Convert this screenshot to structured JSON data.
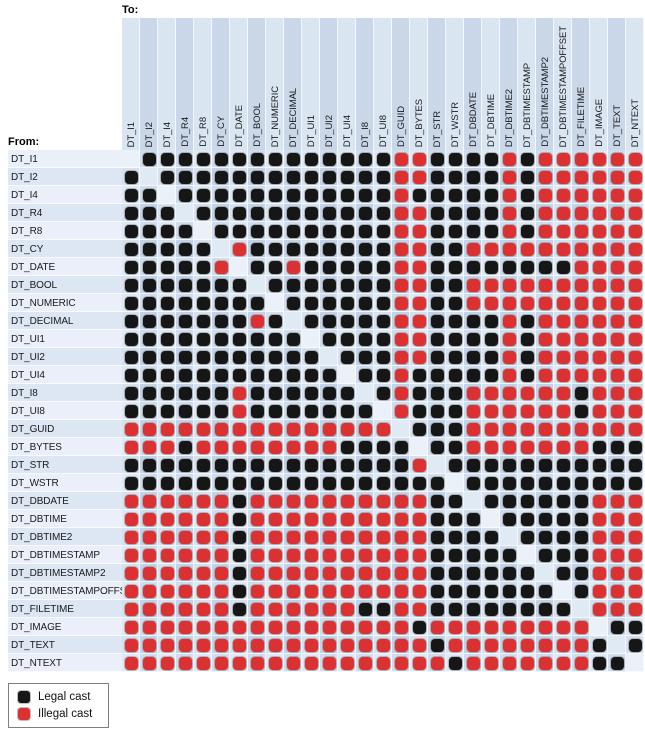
{
  "axis": {
    "to_label": "To:",
    "from_label": "From:"
  },
  "types": [
    "DT_I1",
    "DT_I2",
    "DT_I4",
    "DT_R4",
    "DT_R8",
    "DT_CY",
    "DT_DATE",
    "DT_BOOL",
    "DT_NUMERIC",
    "DT_DECIMAL",
    "DT_UI1",
    "DT_UI2",
    "DT_UI4",
    "DT_I8",
    "DT_UI8",
    "DT_GUID",
    "DT_BYTES",
    "DT_STR",
    "DT_WSTR",
    "DT_DBDATE",
    "DT_DBTIME",
    "DT_DBTIME2",
    "DT_DBTIMESTAMP",
    "DT_DBTIMESTAMP2",
    "DT_DBTIMESTAMPOFFSET",
    "DT_FILETIME",
    "DT_IMAGE",
    "DT_TEXT",
    "DT_NTEXT"
  ],
  "matrix": {
    "cell_codes": {
      "L": "legal cast",
      "X": "illegal cast",
      ".": "same type (blank)"
    },
    "rows": [
      ".LLLLLLLLLLLLLLXXLLLLXLXXXXXX",
      "L.LLLLLLLLLLLLLXXLLLLXLXXXXXX",
      "LL.LLLLLLLLLLLLXLLLLLXLXXXXXX",
      "LLL.LLLLLLLLLLLXXLLLLXLXXXXXX",
      "LLLL.LLLLLLLLLLXXLLLLXLXXXXXX",
      "LLLLL.XLLLLLLLLXXLLXXXXXXXXXX",
      "LLLLLX.LLXLLLLLXXLLLLLLLLXXXX",
      "LLLLLLL.LLLLLLLXXLLXXXXXXXXXX",
      "LLLLLLLL.LLLLLLXXLLXXXXXXXXXX",
      "LLLLLLLXL.LLLLLXXLLLLXLXXXXXX",
      "LLLLLLLLLL.LLLLXXLLLLXLXXXXXX",
      "LLLLLLLLLLL.LLLXXLLLLXLXXXXXX",
      "LLLLLLLLLLLL.LLXLLLLLXLXXXXXX",
      "LLLLLLXLLLLLL.LXLLLXXXXXXLXXX",
      "LLLLLLXLLLLLLL.XLLLXXXXXXLXXX",
      "XXXXXXXXXXXXXXX.LLLXXXXXXXXXX",
      "XXXLXXXXXXXXLLLL.LLXXXXXXXLLL",
      "LLLLLLLLLLLLLLLLX.LLLLLLLLLLL",
      "LLLLLLLLLLLLLLLLLL.LLLLLLLLLL",
      "XXXXXXLXXXXXXXXXXLL.LLLLLLXXX",
      "XXXXXXLXXXXXXXXXXLLL.LLLLLXXX",
      "XXXXXXLXXXXXXXXXXLLLL.LLLLXXX",
      "XXXXXXLXXXXXXXXXXLLLLL.LLLXXX",
      "XXXXXXLXXXXXXXXXXLLLLLL.LLXXX",
      "XXXXXXLXXXXXXXXXXLLLLLLL.LXXX",
      "XXXXXXLXXXXXXLLXXLLLLLLLL.XXX",
      "XXXXXXXXXXXXXXXXLXXXXXXXXX.LL",
      "XXXXXXXXXXXXXXXXXLXXXXXXXXL.L",
      "XXXXXXXXXXXXXXXXXXLXXXXXXXLL."
    ]
  },
  "legend": {
    "items": [
      {
        "key": "legal",
        "label": "Legal cast"
      },
      {
        "key": "illegal",
        "label": "Illegal cast"
      }
    ]
  },
  "colors": {
    "legal_dot": "#161616",
    "illegal_dot": "#dc3132"
  }
}
